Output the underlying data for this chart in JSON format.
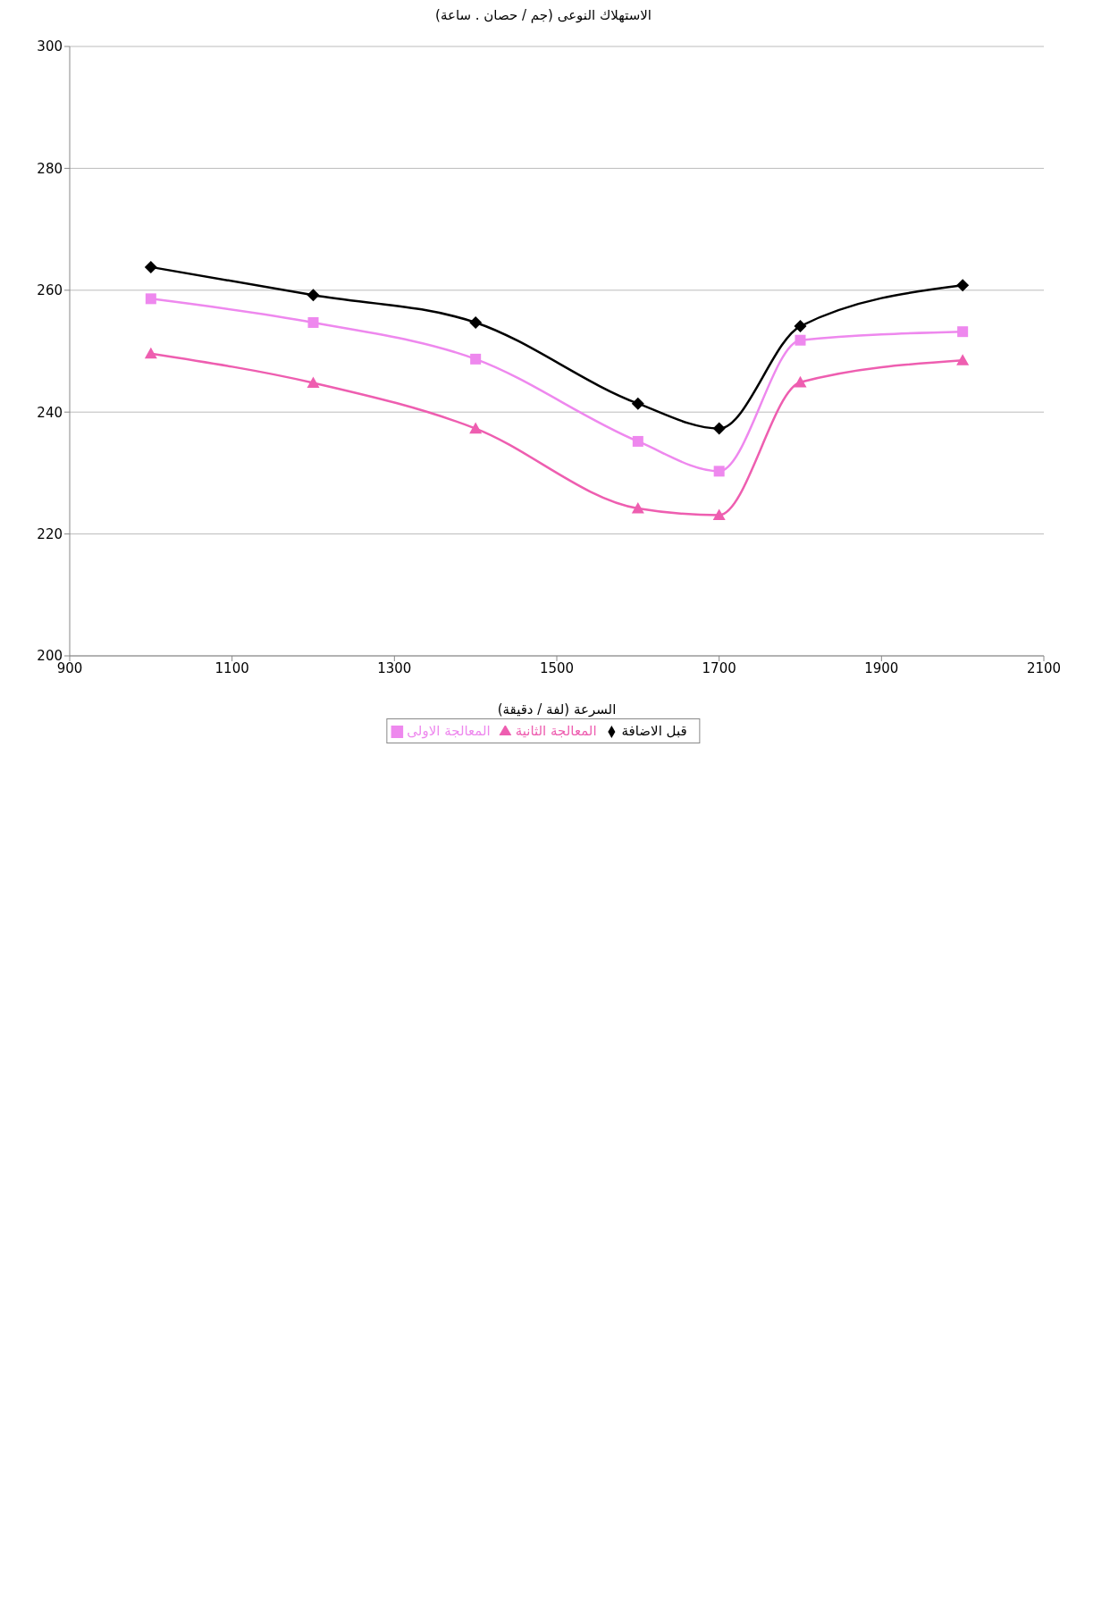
{
  "chart_data": {
    "type": "line",
    "xlabel": "السرعة (لفة / دقيقة)",
    "ylabel": "الاستهلاك النوعى (جم / حصان . ساعة)",
    "x": [
      1000,
      1200,
      1400,
      1600,
      1700,
      1800,
      2000
    ],
    "series": [
      {
        "name": "قبل الاضافة",
        "color": "#000000",
        "marker": "diamond",
        "values": [
          263.8,
          259.2,
          254.7,
          241.4,
          237.3,
          254.1,
          260.8
        ]
      },
      {
        "name": "المعالجة الاولى",
        "color": "#ee88ee",
        "marker": "square",
        "values": [
          258.6,
          254.7,
          248.7,
          235.2,
          230.3,
          251.8,
          253.2
        ]
      },
      {
        "name": "المعالجة الثانية",
        "color": "#ee5eb0",
        "marker": "triangle",
        "values": [
          249.6,
          244.8,
          237.3,
          224.2,
          223.1,
          244.9,
          248.5
        ]
      }
    ],
    "xlim": [
      900,
      2100
    ],
    "xticks": [
      900,
      1100,
      1300,
      1500,
      1700,
      1900,
      2100
    ],
    "ylim": [
      200,
      300
    ],
    "yticks": [
      200,
      220,
      240,
      260,
      280,
      300
    ],
    "grid": "y",
    "legend": "bottom"
  }
}
